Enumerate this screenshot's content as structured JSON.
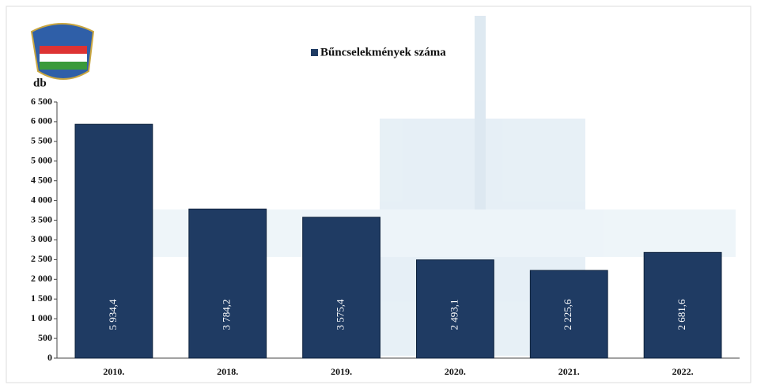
{
  "chart_data": {
    "type": "bar",
    "y_label": "db",
    "categories": [
      "2010.",
      "2018.",
      "2019.",
      "2020.",
      "2021.",
      "2022."
    ],
    "series": [
      {
        "name": "Bűncselekmények száma",
        "color": "#1f3b63",
        "values": [
          5934.4,
          3784.2,
          3575.4,
          2493.1,
          2225.6,
          2681.6
        ],
        "value_labels": [
          "5 934,4",
          "3 784,2",
          "3 575,4",
          "2 493,1",
          "2 225,6",
          "2 681,6"
        ]
      }
    ],
    "ylim": [
      0,
      6500
    ],
    "yticks": [
      0,
      500,
      {
        "value": 1000,
        "label": "1 000"
      },
      {
        "value": 1500,
        "label": "1 500"
      },
      {
        "value": 2000,
        "label": "2 000"
      },
      {
        "value": 2500,
        "label": "2 500"
      },
      {
        "value": 3000,
        "label": "3 000"
      },
      {
        "value": 3500,
        "label": "3 500"
      },
      {
        "value": 4000,
        "label": "4 000"
      },
      {
        "value": 4500,
        "label": "4 500"
      },
      {
        "value": 5000,
        "label": "5 000"
      },
      {
        "value": 5500,
        "label": "5 500"
      },
      {
        "value": 6000,
        "label": "6 000"
      },
      {
        "value": 6500,
        "label": "6 500"
      }
    ]
  }
}
